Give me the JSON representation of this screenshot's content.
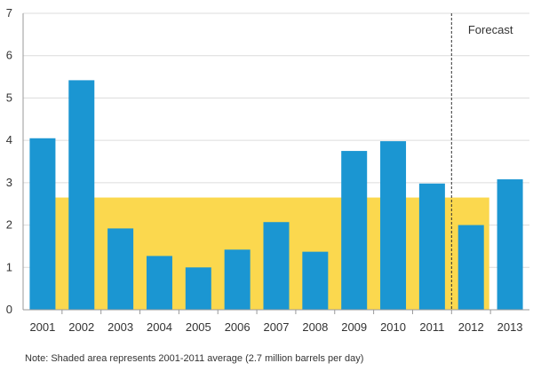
{
  "chart_data": {
    "type": "bar",
    "categories": [
      "2001",
      "2002",
      "2003",
      "2004",
      "2005",
      "2006",
      "2007",
      "2008",
      "2009",
      "2010",
      "2011",
      "2012",
      "2013"
    ],
    "values": [
      4.05,
      5.42,
      1.92,
      1.27,
      1.0,
      1.42,
      2.07,
      1.37,
      3.75,
      3.98,
      2.98,
      2.0,
      3.08
    ],
    "ylim": [
      0,
      7
    ],
    "yticks": [
      "0",
      "1",
      "2",
      "3",
      "4",
      "5",
      "6",
      "7"
    ],
    "grid": true,
    "average_band": {
      "value": 2.65,
      "from_category": "2001",
      "to_category": "2012"
    },
    "forecast_divider_after": "2011",
    "annotations": {
      "forecast": "Forecast"
    },
    "note": "Note: Shaded area represents 2001-2011 average (2.7 million barrels per day)",
    "colors": {
      "bar": "#1b96d2",
      "band": "#fbd84e",
      "grid": "#dcdcdc",
      "axis": "#999999"
    }
  }
}
